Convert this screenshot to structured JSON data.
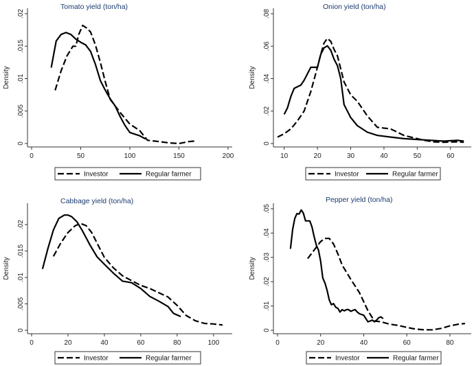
{
  "chart_data": [
    {
      "type": "line",
      "title": "Tomato yield (ton/ha)",
      "ylabel": "Density",
      "xlim": [
        0,
        200
      ],
      "ylim": [
        0,
        0.02
      ],
      "xticks": [
        0,
        50,
        100,
        150,
        200
      ],
      "xtick_labels": [
        "0",
        "50",
        "100",
        "150",
        "200"
      ],
      "yticks": [
        0,
        0.005,
        0.01,
        0.015,
        0.02
      ],
      "ytick_labels": [
        "0",
        ".005",
        ".01",
        ".015",
        ".02"
      ],
      "series": [
        {
          "name": "Investor",
          "style": "dashed",
          "x": [
            24,
            30,
            36,
            42,
            45,
            48,
            52,
            56,
            60,
            65,
            70,
            75,
            80,
            90,
            100,
            110,
            118,
            130,
            140,
            150,
            160,
            168
          ],
          "y": [
            0.0082,
            0.0112,
            0.0135,
            0.015,
            0.015,
            0.0168,
            0.0182,
            0.0178,
            0.0172,
            0.0152,
            0.0125,
            0.0095,
            0.0068,
            0.0048,
            0.003,
            0.002,
            0.0005,
            0.0003,
            0.0001,
            0.0,
            0.0003,
            0.0004
          ]
        },
        {
          "name": "Regular farmer",
          "style": "solid",
          "x": [
            20,
            25,
            30,
            35,
            40,
            45,
            50,
            55,
            60,
            65,
            70,
            75,
            80,
            85,
            90,
            95,
            100,
            110,
            116
          ],
          "y": [
            0.0117,
            0.0158,
            0.0168,
            0.0171,
            0.0168,
            0.0161,
            0.0156,
            0.0152,
            0.0142,
            0.0122,
            0.0097,
            0.0082,
            0.0069,
            0.0058,
            0.0042,
            0.0028,
            0.0017,
            0.0012,
            0.0007
          ]
        }
      ],
      "legend": [
        "Investor",
        "Regular farmer"
      ]
    },
    {
      "type": "line",
      "title": "Onion yield (ton/ha)",
      "ylabel": "Density",
      "xlim": [
        8,
        65
      ],
      "ylim": [
        0,
        0.08
      ],
      "xticks": [
        10,
        20,
        30,
        40,
        50,
        60
      ],
      "xtick_labels": [
        "10",
        "20",
        "30",
        "40",
        "50",
        "60"
      ],
      "yticks": [
        0,
        0.02,
        0.04,
        0.06,
        0.08
      ],
      "ytick_labels": [
        "0",
        ".02",
        ".04",
        ".06",
        ".08"
      ],
      "series": [
        {
          "name": "Investor",
          "style": "dashed",
          "x": [
            8,
            10,
            12,
            14,
            16,
            18,
            20,
            21,
            22,
            23,
            24,
            25,
            26,
            27,
            28,
            30,
            32,
            35,
            38,
            42,
            46,
            50,
            52,
            55,
            58,
            62,
            64
          ],
          "y": [
            0.004,
            0.006,
            0.009,
            0.014,
            0.02,
            0.032,
            0.047,
            0.055,
            0.062,
            0.0648,
            0.063,
            0.058,
            0.054,
            0.046,
            0.038,
            0.03,
            0.026,
            0.017,
            0.01,
            0.009,
            0.005,
            0.003,
            0.002,
            0.001,
            0.0008,
            0.001,
            0.0008
          ]
        },
        {
          "name": "Regular farmer",
          "style": "solid",
          "x": [
            10,
            11,
            12,
            13,
            14,
            15,
            16,
            17,
            18,
            19,
            20,
            21,
            22,
            23,
            24,
            25,
            26,
            27,
            28,
            30,
            32,
            35,
            38,
            42,
            46,
            50,
            54,
            58,
            62,
            64
          ],
          "y": [
            0.018,
            0.022,
            0.029,
            0.034,
            0.035,
            0.036,
            0.039,
            0.043,
            0.047,
            0.047,
            0.047,
            0.055,
            0.059,
            0.0602,
            0.0575,
            0.052,
            0.048,
            0.04,
            0.024,
            0.016,
            0.011,
            0.007,
            0.005,
            0.004,
            0.003,
            0.0025,
            0.002,
            0.0015,
            0.002,
            0.0015
          ]
        }
      ],
      "legend": [
        "Investor",
        "Regular farmer"
      ]
    },
    {
      "type": "line",
      "title": "Cabbage yield (ton/ha)",
      "ylabel": "Density",
      "xlim": [
        0,
        108
      ],
      "ylim": [
        0,
        0.023
      ],
      "xticks": [
        0,
        20,
        40,
        60,
        80,
        100
      ],
      "xtick_labels": [
        "0",
        "20",
        "40",
        "60",
        "80",
        "100"
      ],
      "yticks": [
        0,
        0.005,
        0.01,
        0.015,
        0.02
      ],
      "ytick_labels": [
        "0",
        ".005",
        ".01",
        ".015",
        ".02"
      ],
      "series": [
        {
          "name": "Investor",
          "style": "dashed",
          "x": [
            12,
            16,
            20,
            24,
            27,
            30,
            33,
            36,
            40,
            45,
            50,
            55,
            60,
            65,
            70,
            75,
            80,
            85,
            90,
            95,
            100,
            105
          ],
          "y": [
            0.014,
            0.0165,
            0.0185,
            0.0198,
            0.0202,
            0.0198,
            0.0185,
            0.0165,
            0.0138,
            0.0118,
            0.0103,
            0.0094,
            0.0085,
            0.0079,
            0.0071,
            0.0063,
            0.0047,
            0.0028,
            0.0018,
            0.0013,
            0.0012,
            0.001
          ]
        },
        {
          "name": "Regular farmer",
          "style": "solid",
          "x": [
            6,
            9,
            12,
            15,
            18,
            20,
            22,
            25,
            28,
            32,
            36,
            40,
            45,
            50,
            55,
            60,
            65,
            70,
            75,
            78,
            82
          ],
          "y": [
            0.0116,
            0.0155,
            0.019,
            0.0212,
            0.0218,
            0.0218,
            0.0215,
            0.0205,
            0.0188,
            0.0162,
            0.0139,
            0.0125,
            0.0108,
            0.0093,
            0.009,
            0.0079,
            0.0064,
            0.0055,
            0.0045,
            0.0032,
            0.0026
          ]
        }
      ],
      "legend": [
        "Investor",
        "Regular farmer"
      ]
    },
    {
      "type": "line",
      "title": "Pepper yield (ton/ha)",
      "ylabel": "Density",
      "xlim": [
        0,
        88
      ],
      "ylim": [
        0,
        0.05
      ],
      "xticks": [
        0,
        20,
        40,
        60,
        80
      ],
      "xtick_labels": [
        "0",
        "20",
        "40",
        "60",
        "80"
      ],
      "yticks": [
        0,
        0.01,
        0.02,
        0.03,
        0.04,
        0.05
      ],
      "ytick_labels": [
        "0",
        ".01",
        ".02",
        ".03",
        ".04",
        ".05"
      ],
      "series": [
        {
          "name": "Investor",
          "style": "dashed",
          "x": [
            14,
            17,
            20,
            22,
            24,
            26,
            28,
            30,
            34,
            38,
            42,
            45,
            48,
            52,
            56,
            60,
            64,
            68,
            72,
            76,
            80,
            84,
            87
          ],
          "y": [
            0.0295,
            0.033,
            0.0365,
            0.0378,
            0.0378,
            0.0355,
            0.0315,
            0.0268,
            0.021,
            0.0155,
            0.008,
            0.0038,
            0.0035,
            0.0025,
            0.002,
            0.0012,
            0.0005,
            0.0002,
            0.0002,
            0.0008,
            0.0018,
            0.0025,
            0.0028
          ]
        },
        {
          "name": "Regular farmer",
          "style": "solid",
          "x": [
            6,
            7,
            8,
            9,
            10,
            11,
            12,
            13,
            14,
            15,
            16,
            17,
            18,
            19,
            20,
            21,
            22,
            23,
            24,
            25,
            26,
            27,
            28,
            29,
            30,
            31,
            32,
            33,
            34,
            35,
            36,
            37,
            38,
            39,
            40,
            41,
            42,
            43,
            44,
            45,
            46,
            47,
            48,
            49
          ],
          "y": [
            0.0335,
            0.0415,
            0.046,
            0.048,
            0.0478,
            0.0495,
            0.0482,
            0.045,
            0.045,
            0.045,
            0.0425,
            0.0385,
            0.035,
            0.033,
            0.0285,
            0.0215,
            0.0195,
            0.0165,
            0.0125,
            0.0105,
            0.011,
            0.0095,
            0.009,
            0.0075,
            0.0085,
            0.008,
            0.0085,
            0.0085,
            0.0078,
            0.0082,
            0.0085,
            0.0075,
            0.0068,
            0.0065,
            0.0062,
            0.0048,
            0.0035,
            0.0038,
            0.0042,
            0.0035,
            0.0042,
            0.0052,
            0.0055,
            0.0048
          ]
        }
      ],
      "legend": [
        "Investor",
        "Regular farmer"
      ]
    }
  ]
}
